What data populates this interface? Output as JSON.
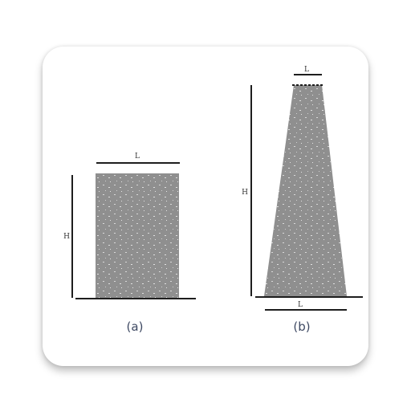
{
  "figure": {
    "panel_a": {
      "caption": "(a)",
      "height_label": "H",
      "top_width_label": "L"
    },
    "panel_b": {
      "caption": "(b)",
      "height_label": "H",
      "top_width_label": "L",
      "bottom_width_label": "L"
    },
    "colors": {
      "fill": "#8f8f8f",
      "line": "#1e1e1e",
      "caption": "#3f4a63"
    }
  }
}
